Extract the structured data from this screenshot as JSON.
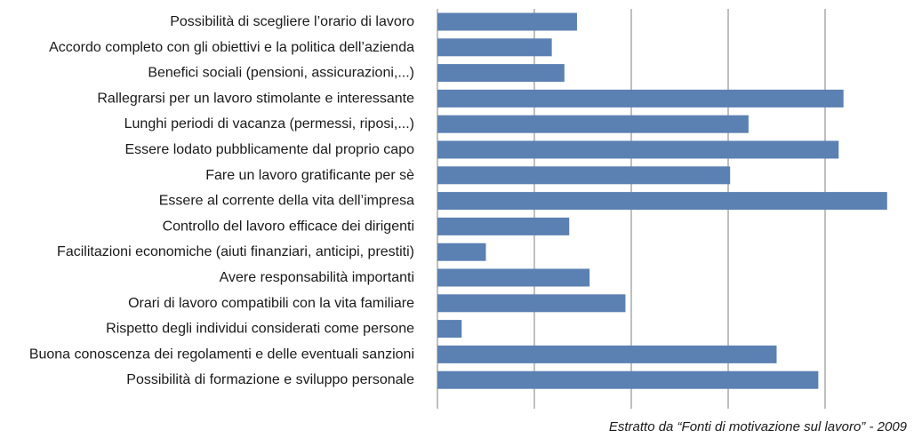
{
  "chart_data": {
    "type": "bar",
    "orientation": "horizontal",
    "categories": [
      "Possibilità di scegliere l’orario di lavoro",
      "Accordo completo con gli obiettivi e la politica dell’azienda",
      "Benefici sociali (pensioni, assicurazioni,...)",
      "Rallegrarsi per un lavoro stimolante e interessante",
      "Lunghi periodi di vacanza (permessi, riposi,...)",
      "Essere lodato pubblicamente dal proprio capo",
      "Fare un lavoro gratificante per sè",
      "Essere al corrente della vita dell’impresa",
      "Controllo del lavoro efficace dei dirigenti",
      "Facilitazioni economiche (aiuti finanziari, anticipi, prestiti)",
      "Avere responsabilità importanti",
      "Orari di lavoro compatibili con la vita familiare",
      "Rispetto degli individui considerati come persone",
      "Buona conoscenza dei regolamenti e delle eventuali sanzioni",
      "Possibilità di formazione e sviluppo personale"
    ],
    "values": [
      1.44,
      1.18,
      1.31,
      4.19,
      3.21,
      4.14,
      3.02,
      4.64,
      1.36,
      0.5,
      1.57,
      1.94,
      0.25,
      3.5,
      3.93
    ],
    "xlim": [
      0,
      5
    ],
    "gridlines": [
      0,
      1,
      2,
      3,
      4
    ],
    "grid": true,
    "bar_color": "#5b80b2",
    "grid_color": "#7f7f7f",
    "source_note": "Estratto da “Fonti di motivazione sul lavoro” - 2009"
  }
}
